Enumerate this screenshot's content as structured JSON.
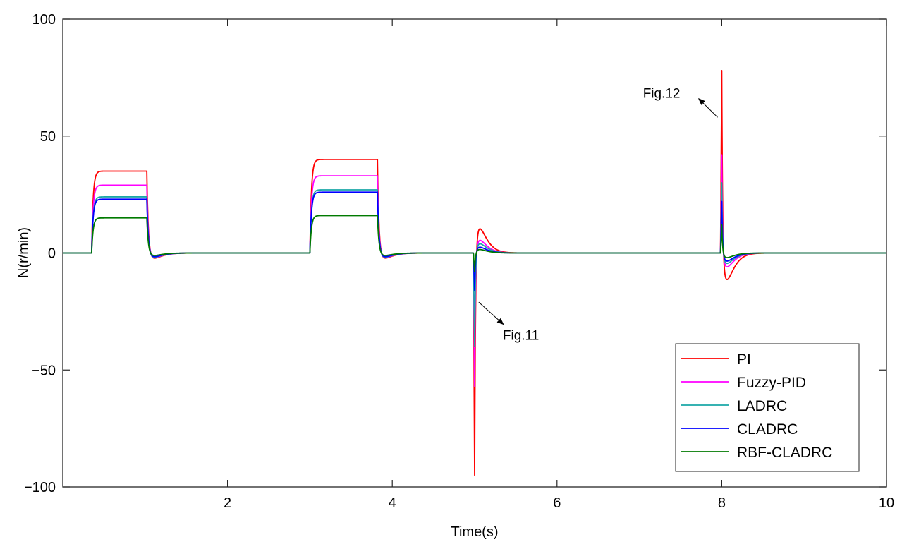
{
  "chart_data": {
    "type": "line",
    "title": "",
    "xlabel": "Time(s)",
    "ylabel": "N(r/min)",
    "xlim": [
      0,
      10
    ],
    "ylim": [
      -100,
      100
    ],
    "xticks": [
      2,
      4,
      6,
      8,
      10
    ],
    "yticks": [
      -100,
      -50,
      0,
      50,
      100
    ],
    "xtick_labels": [
      "2",
      "4",
      "6",
      "8",
      "10"
    ],
    "ytick_labels": [
      "−100",
      "−50",
      "0",
      "50",
      "100"
    ],
    "grid": false,
    "legend_position": "bottom-right",
    "series": [
      {
        "name": "PI",
        "color": "#ff0000",
        "plateau1": 35,
        "plateau2": 40,
        "undershoot": -2.5,
        "step5_min": -95,
        "step5_over": 10.5,
        "step8_max": 78,
        "step8_under": -11.5
      },
      {
        "name": "Fuzzy-PID",
        "color": "#ff00ff",
        "plateau1": 29,
        "plateau2": 33,
        "undershoot": -2.2,
        "step5_min": -57,
        "step5_over": 5.5,
        "step8_max": 42,
        "step8_under": -6
      },
      {
        "name": "LADRC",
        "color": "#1aa7a7",
        "plateau1": 24,
        "plateau2": 27,
        "undershoot": -2,
        "step5_min": -40,
        "step5_over": 4,
        "step8_max": 30,
        "step8_under": -4.5
      },
      {
        "name": "CLADRC",
        "color": "#0000ff",
        "plateau1": 23,
        "plateau2": 26,
        "undershoot": -1.8,
        "step5_min": -16,
        "step5_over": 2.5,
        "step8_max": 22,
        "step8_under": -3.5
      },
      {
        "name": "RBF-CLADRC",
        "color": "#007a00",
        "plateau1": 15,
        "plateau2": 16,
        "undershoot": -1.2,
        "step5_min": -8,
        "step5_over": 1.5,
        "step8_max": 12,
        "step8_under": -2
      }
    ],
    "annotations": [
      {
        "text": "Fig.11",
        "arrow_from": [
          5.05,
          -21
        ],
        "arrow_to": [
          5.35,
          -30.5
        ]
      },
      {
        "text": "Fig.12",
        "arrow_from": [
          7.95,
          58
        ],
        "arrow_to": [
          7.72,
          66
        ]
      }
    ]
  }
}
